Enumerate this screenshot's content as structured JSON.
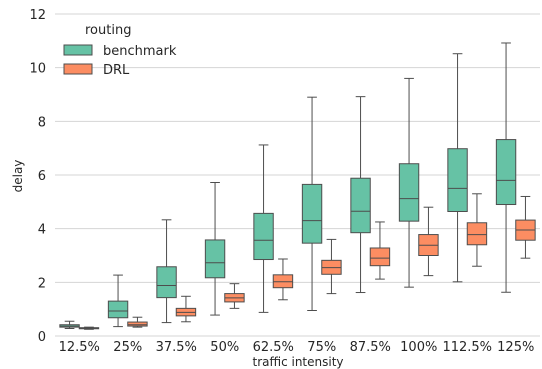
{
  "chart_data": {
    "type": "box",
    "xlabel": "traffic intensity",
    "ylabel": "delay",
    "ylim": [
      0,
      12
    ],
    "yticks": [
      0,
      2,
      4,
      6,
      8,
      10,
      12
    ],
    "grid": "horizontal",
    "legend": {
      "title": "routing",
      "placement": "top-left",
      "entries": [
        "benchmark",
        "DRL"
      ]
    },
    "categories": [
      "12.5%",
      "25%",
      "37.5%",
      "50%",
      "62.5%",
      "75%",
      "87.5%",
      "100%",
      "112.5%",
      "125%"
    ],
    "series": [
      {
        "name": "benchmark",
        "color": "#66c2a5",
        "boxes": [
          {
            "min": 0.28,
            "q1": 0.33,
            "median": 0.37,
            "q3": 0.42,
            "max": 0.55
          },
          {
            "min": 0.35,
            "q1": 0.68,
            "median": 0.93,
            "q3": 1.3,
            "max": 2.27
          },
          {
            "min": 0.5,
            "q1": 1.43,
            "median": 1.88,
            "q3": 2.58,
            "max": 4.33
          },
          {
            "min": 0.78,
            "q1": 2.17,
            "median": 2.73,
            "q3": 3.58,
            "max": 5.72
          },
          {
            "min": 0.88,
            "q1": 2.85,
            "median": 3.57,
            "q3": 4.57,
            "max": 7.12
          },
          {
            "min": 0.95,
            "q1": 3.46,
            "median": 4.3,
            "q3": 5.65,
            "max": 8.9
          },
          {
            "min": 1.62,
            "q1": 3.85,
            "median": 4.65,
            "q3": 5.88,
            "max": 8.92
          },
          {
            "min": 1.82,
            "q1": 4.28,
            "median": 5.12,
            "q3": 6.42,
            "max": 9.6
          },
          {
            "min": 2.02,
            "q1": 4.64,
            "median": 5.5,
            "q3": 6.98,
            "max": 10.52
          },
          {
            "min": 1.63,
            "q1": 4.9,
            "median": 5.8,
            "q3": 7.32,
            "max": 10.92
          }
        ]
      },
      {
        "name": "DRL",
        "color": "#fc8d62",
        "boxes": [
          {
            "min": 0.25,
            "q1": 0.27,
            "median": 0.29,
            "q3": 0.31,
            "max": 0.33
          },
          {
            "min": 0.33,
            "q1": 0.37,
            "median": 0.42,
            "q3": 0.52,
            "max": 0.7
          },
          {
            "min": 0.53,
            "q1": 0.75,
            "median": 0.88,
            "q3": 1.03,
            "max": 1.48
          },
          {
            "min": 1.03,
            "q1": 1.27,
            "median": 1.42,
            "q3": 1.58,
            "max": 1.95
          },
          {
            "min": 1.35,
            "q1": 1.8,
            "median": 2.02,
            "q3": 2.28,
            "max": 2.87
          },
          {
            "min": 1.58,
            "q1": 2.3,
            "median": 2.55,
            "q3": 2.82,
            "max": 3.6
          },
          {
            "min": 2.12,
            "q1": 2.62,
            "median": 2.9,
            "q3": 3.28,
            "max": 4.25
          },
          {
            "min": 2.25,
            "q1": 3.0,
            "median": 3.38,
            "q3": 3.78,
            "max": 4.8
          },
          {
            "min": 2.6,
            "q1": 3.4,
            "median": 3.78,
            "q3": 4.22,
            "max": 5.3
          },
          {
            "min": 2.9,
            "q1": 3.57,
            "median": 3.95,
            "q3": 4.32,
            "max": 5.2
          }
        ]
      }
    ]
  }
}
